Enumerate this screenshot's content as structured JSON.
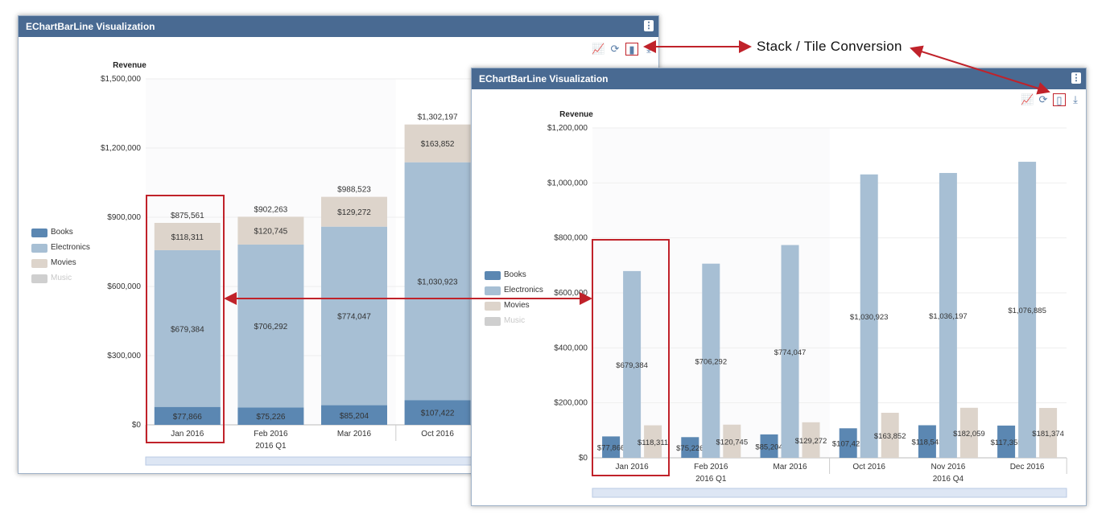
{
  "panels": [
    {
      "title": "EChartBarLine Visualization",
      "mode": "stack",
      "toolbar": [
        "chart-type-icon",
        "refresh-icon",
        "bar-chart-icon",
        "download-icon"
      ]
    },
    {
      "title": "EChartBarLine Visualization",
      "mode": "tile",
      "toolbar": [
        "chart-type-icon",
        "refresh-icon",
        "bar-chart-icon",
        "download-icon"
      ]
    }
  ],
  "annotation": {
    "label": "Stack / Tile Conversion",
    "color": "#c0222a"
  },
  "legend": [
    {
      "name": "Books",
      "color": "#5b87b2"
    },
    {
      "name": "Electronics",
      "color": "#a7bfd4"
    },
    {
      "name": "Movies",
      "color": "#ddd4cb"
    },
    {
      "name": "Music",
      "color": "#cfcfcf",
      "inactive": true
    }
  ],
  "chart_data": [
    {
      "type": "bar",
      "stacked": true,
      "ylabel": "Revenue",
      "ylim": [
        0,
        1500000
      ],
      "yticks": [
        "$0",
        "$300,000",
        "$600,000",
        "$900,000",
        "$1,200,000",
        "$1,500,000"
      ],
      "categories": [
        "Jan 2016",
        "Feb 2016",
        "Mar 2016",
        "Oct 2016"
      ],
      "groups": [
        {
          "label": "2016 Q1",
          "count": 3
        },
        {
          "label": "",
          "count": 1
        }
      ],
      "series": [
        {
          "name": "Books",
          "values": [
            77866,
            75226,
            85204,
            107422
          ],
          "labels": [
            "$77,866",
            "$75,226",
            "$85,204",
            "$107,422"
          ]
        },
        {
          "name": "Electronics",
          "values": [
            679384,
            706292,
            774047,
            1030923
          ],
          "labels": [
            "$679,384",
            "$706,292",
            "$774,047",
            "$1,030,923"
          ]
        },
        {
          "name": "Movies",
          "values": [
            118311,
            120745,
            129272,
            163852
          ],
          "labels": [
            "$118,311",
            "$120,745",
            "$129,272",
            "$163,852"
          ]
        }
      ],
      "totals": [
        "$875,561",
        "$902,263",
        "$988,523",
        "$1,302,197"
      ]
    },
    {
      "type": "bar",
      "stacked": false,
      "ylabel": "Revenue",
      "ylim": [
        0,
        1200000
      ],
      "yticks": [
        "$0",
        "$200,000",
        "$400,000",
        "$600,000",
        "$800,000",
        "$1,000,000",
        "$1,200,000"
      ],
      "categories": [
        "Jan 2016",
        "Feb 2016",
        "Mar 2016",
        "Oct 2016",
        "Nov 2016",
        "Dec 2016"
      ],
      "groups": [
        {
          "label": "2016 Q1",
          "count": 3
        },
        {
          "label": "2016 Q4",
          "count": 3
        }
      ],
      "series": [
        {
          "name": "Books",
          "values": [
            77866,
            75226,
            85204,
            107422,
            118543,
            117355
          ],
          "labels": [
            "$77,866",
            "$75,226",
            "$85,204",
            "$107,422",
            "$118,543",
            "$117,355"
          ]
        },
        {
          "name": "Electronics",
          "values": [
            679384,
            706292,
            774047,
            1030923,
            1036197,
            1076885
          ],
          "labels": [
            "$679,384",
            "$706,292",
            "$774,047",
            "$1,030,923",
            "$1,036,197",
            "$1,076,885"
          ]
        },
        {
          "name": "Movies",
          "values": [
            118311,
            120745,
            129272,
            163852,
            182059,
            181374
          ],
          "labels": [
            "$118,311",
            "$120,745",
            "$129,272",
            "$163,852",
            "$182,059",
            "$181,374"
          ]
        }
      ]
    }
  ]
}
